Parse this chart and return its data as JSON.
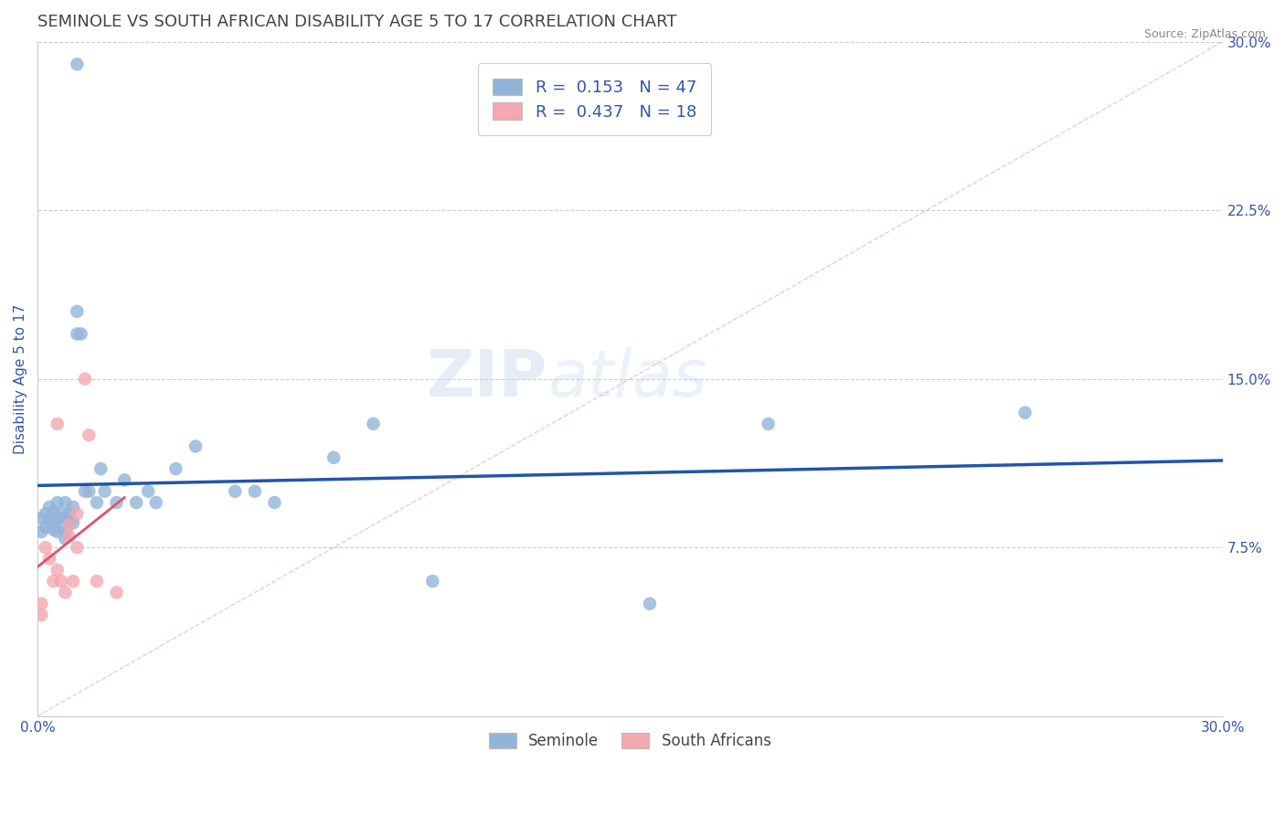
{
  "title": "SEMINOLE VS SOUTH AFRICAN DISABILITY AGE 5 TO 17 CORRELATION CHART",
  "source": "Source: ZipAtlas.com",
  "ylabel": "Disability Age 5 to 17",
  "xlim": [
    0.0,
    0.3
  ],
  "ylim": [
    0.0,
    0.3
  ],
  "ytick_right_labels": [
    "7.5%",
    "15.0%",
    "22.5%",
    "30.0%"
  ],
  "ytick_right_values": [
    0.075,
    0.15,
    0.225,
    0.3
  ],
  "blue_color": "#92B4D9",
  "pink_color": "#F4A8B0",
  "line_blue": "#2255AA",
  "line_pink": "#E05070",
  "diag_color": "#E8C0C0",
  "axis_color": "#3355AA",
  "grid_color": "#CCCCCC",
  "blue_R": 0.153,
  "pink_R": 0.437,
  "blue_N": 47,
  "pink_N": 18,
  "title_fontsize": 13,
  "seminole_x": [
    0.001,
    0.001,
    0.002,
    0.002,
    0.003,
    0.003,
    0.004,
    0.004,
    0.004,
    0.005,
    0.005,
    0.005,
    0.006,
    0.006,
    0.007,
    0.007,
    0.007,
    0.007,
    0.008,
    0.008,
    0.009,
    0.009,
    0.01,
    0.01,
    0.01,
    0.011,
    0.012,
    0.013,
    0.015,
    0.016,
    0.017,
    0.02,
    0.022,
    0.025,
    0.028,
    0.03,
    0.035,
    0.04,
    0.05,
    0.055,
    0.06,
    0.075,
    0.085,
    0.1,
    0.155,
    0.185,
    0.25
  ],
  "seminole_y": [
    0.088,
    0.082,
    0.09,
    0.084,
    0.093,
    0.087,
    0.091,
    0.086,
    0.083,
    0.095,
    0.088,
    0.082,
    0.09,
    0.085,
    0.095,
    0.088,
    0.082,
    0.079,
    0.09,
    0.087,
    0.093,
    0.086,
    0.29,
    0.18,
    0.17,
    0.17,
    0.1,
    0.1,
    0.095,
    0.11,
    0.1,
    0.095,
    0.105,
    0.095,
    0.1,
    0.095,
    0.11,
    0.12,
    0.1,
    0.1,
    0.095,
    0.115,
    0.13,
    0.06,
    0.05,
    0.13,
    0.135
  ],
  "southafrican_x": [
    0.001,
    0.001,
    0.002,
    0.003,
    0.004,
    0.005,
    0.005,
    0.006,
    0.007,
    0.008,
    0.008,
    0.009,
    0.01,
    0.01,
    0.012,
    0.013,
    0.015,
    0.02
  ],
  "southafrican_y": [
    0.05,
    0.045,
    0.075,
    0.07,
    0.06,
    0.13,
    0.065,
    0.06,
    0.055,
    0.085,
    0.08,
    0.06,
    0.09,
    0.075,
    0.15,
    0.125,
    0.06,
    0.055
  ]
}
